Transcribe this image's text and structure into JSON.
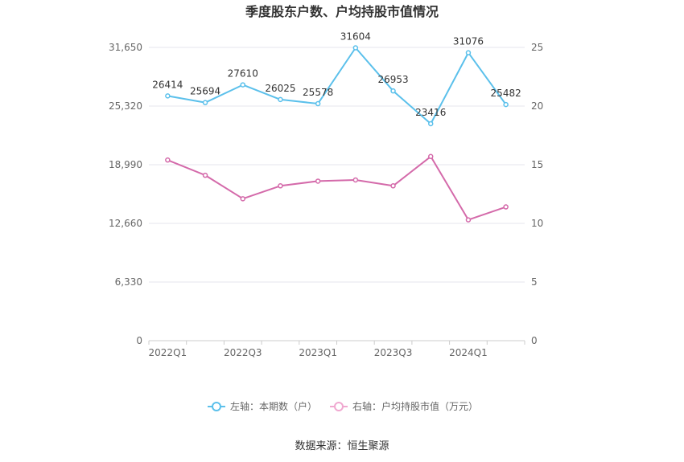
{
  "chart_data": {
    "type": "line",
    "title": "季度股东户数、户均持股市值情况",
    "categories": [
      "2022Q1",
      "2022Q2",
      "2022Q3",
      "2022Q4",
      "2023Q1",
      "2023Q2",
      "2023Q3",
      "2023Q4",
      "2024Q1",
      "2024Q2"
    ],
    "x_tick_labels": [
      "2022Q1",
      "2022Q3",
      "2023Q1",
      "2023Q3",
      "2024Q1"
    ],
    "left_axis": {
      "ticks": [
        "0",
        "6,330",
        "12,660",
        "18,990",
        "25,320",
        "31,650"
      ],
      "ylim": [
        0,
        31650
      ]
    },
    "right_axis": {
      "ticks": [
        "0",
        "5",
        "10",
        "15",
        "20",
        "25"
      ],
      "ylim": [
        0,
        25
      ]
    },
    "series": [
      {
        "name": "左轴：本期数（户）",
        "axis": "left",
        "color": "#5bc0eb",
        "values": [
          26414,
          25694,
          27610,
          26025,
          25578,
          31604,
          26953,
          23416,
          31076,
          25482
        ],
        "labels": [
          "26414",
          "25694",
          "27610",
          "26025",
          "25578",
          "31604",
          "26953",
          "23416",
          "31076",
          "25482"
        ]
      },
      {
        "name": "右轴：户均持股市值（万元）",
        "axis": "right",
        "color": "#d46aaa",
        "legend_color": "#f0a8d0",
        "values": [
          15.4,
          14.1,
          12.1,
          13.2,
          13.6,
          13.7,
          13.2,
          15.7,
          10.3,
          11.4
        ]
      }
    ],
    "grid": true,
    "legend_position": "bottom"
  },
  "source": "数据来源：恒生聚源"
}
